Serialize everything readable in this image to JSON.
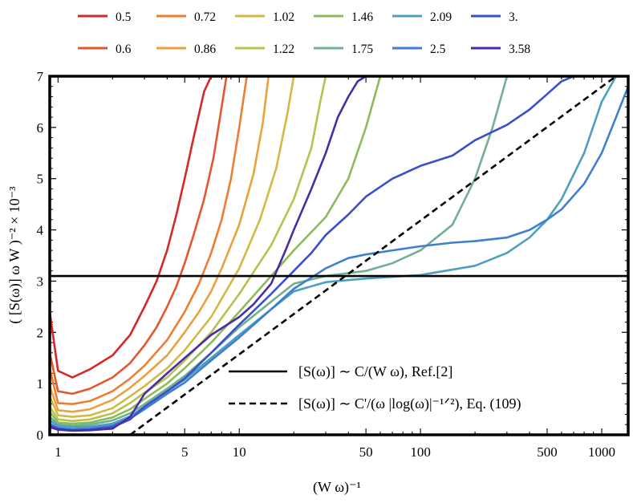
{
  "chart_data": {
    "type": "line",
    "title": "",
    "xscale": "log",
    "xlim": [
      0.9,
      1400
    ],
    "ylim": [
      0,
      7
    ],
    "xlabel": "(W ω)⁻¹",
    "ylabel": "( [S(ω)] ω W )⁻² × 10⁻³",
    "x_ticks": [
      1,
      5,
      10,
      50,
      100,
      500,
      1000
    ],
    "x_tick_labels": [
      "1",
      "5",
      "10",
      "50",
      "100",
      "500",
      "1000"
    ],
    "y_ticks": [
      0,
      1,
      2,
      3,
      4,
      5,
      6,
      7
    ],
    "y_tick_labels": [
      "0",
      "1",
      "2",
      "3",
      "4",
      "5",
      "6",
      "7"
    ],
    "legend_placement": "top",
    "series": [
      {
        "name": "0.5",
        "color": "#d62728",
        "x": [
          0.9,
          1.0,
          1.2,
          1.5,
          2.0,
          2.5,
          3.0,
          3.5,
          4.0,
          4.5,
          5.0,
          5.6,
          6.4,
          7.0
        ],
        "y": [
          2.4,
          1.25,
          1.12,
          1.28,
          1.55,
          1.95,
          2.5,
          3.0,
          3.6,
          4.3,
          5.0,
          5.8,
          6.7,
          7.0
        ]
      },
      {
        "name": "0.6",
        "color": "#e4572e",
        "x": [
          0.9,
          1.0,
          1.2,
          1.5,
          2.0,
          2.5,
          3.0,
          3.5,
          4.0,
          4.5,
          5.0,
          5.6,
          6.4,
          7.2,
          8.0,
          8.5
        ],
        "y": [
          1.6,
          0.85,
          0.8,
          0.9,
          1.12,
          1.4,
          1.75,
          2.1,
          2.5,
          2.9,
          3.35,
          3.9,
          4.6,
          5.4,
          6.4,
          7.0
        ]
      },
      {
        "name": "0.72",
        "color": "#ee7d32",
        "x": [
          0.9,
          1.0,
          1.2,
          1.5,
          2.0,
          2.5,
          3.0,
          4.0,
          5.0,
          6.0,
          7.0,
          8.0,
          9.0,
          10.0,
          11.0
        ],
        "y": [
          1.3,
          0.62,
          0.6,
          0.66,
          0.85,
          1.1,
          1.35,
          1.85,
          2.4,
          2.95,
          3.55,
          4.2,
          5.0,
          6.0,
          7.0
        ]
      },
      {
        "name": "0.86",
        "color": "#e9a23b",
        "x": [
          0.9,
          1.0,
          1.2,
          1.5,
          2.0,
          2.5,
          3.0,
          4.0,
          5.0,
          6.0,
          7.0,
          8.0,
          10.0,
          12.0,
          13.5,
          14.5
        ],
        "y": [
          0.95,
          0.48,
          0.45,
          0.5,
          0.68,
          0.92,
          1.15,
          1.55,
          2.0,
          2.4,
          2.8,
          3.25,
          4.1,
          5.1,
          6.1,
          7.0
        ]
      },
      {
        "name": "1.02",
        "color": "#d4b845",
        "x": [
          0.9,
          1.0,
          1.2,
          1.5,
          2.0,
          2.5,
          3.0,
          4.0,
          5.0,
          7.0,
          10.0,
          13.0,
          16.0,
          18.5,
          20.0
        ],
        "y": [
          0.75,
          0.38,
          0.35,
          0.38,
          0.52,
          0.75,
          0.95,
          1.3,
          1.65,
          2.3,
          3.25,
          4.2,
          5.2,
          6.3,
          7.0
        ]
      },
      {
        "name": "1.22",
        "color": "#b8c14e",
        "x": [
          0.9,
          1.0,
          1.2,
          1.5,
          2.0,
          2.5,
          3.0,
          4.0,
          5.0,
          7.0,
          10.0,
          15.0,
          20.0,
          25.0,
          28.0,
          30.0
        ],
        "y": [
          0.55,
          0.3,
          0.27,
          0.3,
          0.42,
          0.62,
          0.82,
          1.12,
          1.45,
          2.0,
          2.75,
          3.7,
          4.6,
          5.6,
          6.5,
          7.0
        ]
      },
      {
        "name": "1.46",
        "color": "#8dbb5c",
        "x": [
          0.9,
          1.0,
          1.2,
          1.5,
          2.0,
          2.5,
          3.0,
          4.0,
          5.0,
          7.0,
          10.0,
          15.0,
          20.0,
          30.0,
          40.0,
          50.0,
          60.0
        ],
        "y": [
          0.45,
          0.24,
          0.22,
          0.24,
          0.34,
          0.5,
          0.7,
          1.0,
          1.3,
          1.8,
          2.4,
          3.1,
          3.6,
          4.25,
          5.0,
          6.0,
          7.0
        ]
      },
      {
        "name": "1.75",
        "color": "#6fb08f",
        "x": [
          0.9,
          1.0,
          1.2,
          1.5,
          2.0,
          2.5,
          3.0,
          4.0,
          5.0,
          7.0,
          10.0,
          15.0,
          20.0,
          30.0,
          50.0,
          70.0,
          100.0,
          150.0,
          200.0,
          250.0,
          300.0
        ],
        "y": [
          0.35,
          0.2,
          0.18,
          0.2,
          0.28,
          0.42,
          0.6,
          0.9,
          1.15,
          1.6,
          2.1,
          2.6,
          2.95,
          3.1,
          3.2,
          3.35,
          3.6,
          4.1,
          5.0,
          6.0,
          7.0
        ]
      },
      {
        "name": "2.09",
        "color": "#4d9fc1",
        "x": [
          0.9,
          1.0,
          1.2,
          1.5,
          2.0,
          2.5,
          3.0,
          4.0,
          5.0,
          7.0,
          10.0,
          15.0,
          20.0,
          30.0,
          50.0,
          100.0,
          200.0,
          300.0,
          400.0,
          500.0,
          600.0,
          800.0,
          1000.0,
          1200.0
        ],
        "y": [
          0.28,
          0.17,
          0.15,
          0.16,
          0.22,
          0.36,
          0.55,
          0.85,
          1.08,
          1.5,
          1.95,
          2.45,
          2.8,
          2.98,
          3.05,
          3.12,
          3.3,
          3.55,
          3.85,
          4.2,
          4.6,
          5.5,
          6.5,
          7.0
        ]
      },
      {
        "name": "2.5",
        "color": "#3f7fd0",
        "x": [
          0.9,
          1.0,
          1.2,
          1.5,
          2.0,
          2.5,
          3.0,
          4.0,
          5.0,
          7.0,
          10.0,
          15.0,
          20.0,
          30.0,
          40.0,
          50.0,
          70.0,
          100.0,
          150.0,
          200.0,
          300.0,
          400.0,
          500.0,
          600.0,
          800.0,
          1000.0,
          1200.0,
          1400.0
        ],
        "y": [
          0.22,
          0.13,
          0.11,
          0.12,
          0.18,
          0.32,
          0.5,
          0.8,
          1.02,
          1.45,
          1.9,
          2.45,
          2.85,
          3.25,
          3.45,
          3.52,
          3.6,
          3.68,
          3.75,
          3.78,
          3.85,
          4.0,
          4.2,
          4.4,
          4.9,
          5.5,
          6.2,
          6.8
        ]
      },
      {
        "name": "3.",
        "color": "#3a50c9",
        "x": [
          0.9,
          1.0,
          1.2,
          1.5,
          2.0,
          2.5,
          3.0,
          4.0,
          5.0,
          7.0,
          10.0,
          15.0,
          20.0,
          25.0,
          30.0,
          40.0,
          50.0,
          70.0,
          100.0,
          150.0,
          200.0,
          300.0,
          400.0,
          500.0,
          600.0,
          700.0
        ],
        "y": [
          0.18,
          0.12,
          0.09,
          0.1,
          0.15,
          0.3,
          0.55,
          0.85,
          1.1,
          1.6,
          2.15,
          2.75,
          3.2,
          3.55,
          3.9,
          4.3,
          4.65,
          5.0,
          5.25,
          5.45,
          5.75,
          6.05,
          6.35,
          6.65,
          6.9,
          7.0
        ]
      },
      {
        "name": "3.58",
        "color": "#4b2ca6",
        "x": [
          0.9,
          1.0,
          1.2,
          1.5,
          2.0,
          2.5,
          3.0,
          4.0,
          5.0,
          7.0,
          10.0,
          12.0,
          15.0,
          18.0,
          20.0,
          25.0,
          30.0,
          35.0,
          40.0,
          45.0,
          50.0
        ],
        "y": [
          0.15,
          0.1,
          0.08,
          0.09,
          0.12,
          0.35,
          0.8,
          1.2,
          1.5,
          1.95,
          2.3,
          2.55,
          2.95,
          3.6,
          4.0,
          4.8,
          5.5,
          6.2,
          6.6,
          6.9,
          7.0
        ]
      }
    ],
    "annotations": [
      {
        "name": "ref2-horizontal",
        "style": "solid",
        "y": 3.1,
        "legend_text": "[S(ω)] ∼ C/(W ω),   Ref.[2]"
      },
      {
        "name": "eq109-dashed",
        "style": "dashed",
        "x": [
          2.5,
          1200
        ],
        "y": [
          0,
          7
        ],
        "legend_text": "[S(ω)]  ∼ C'/(ω |log(ω)|⁻¹ᐟ²),   Eq. (109)"
      }
    ]
  }
}
